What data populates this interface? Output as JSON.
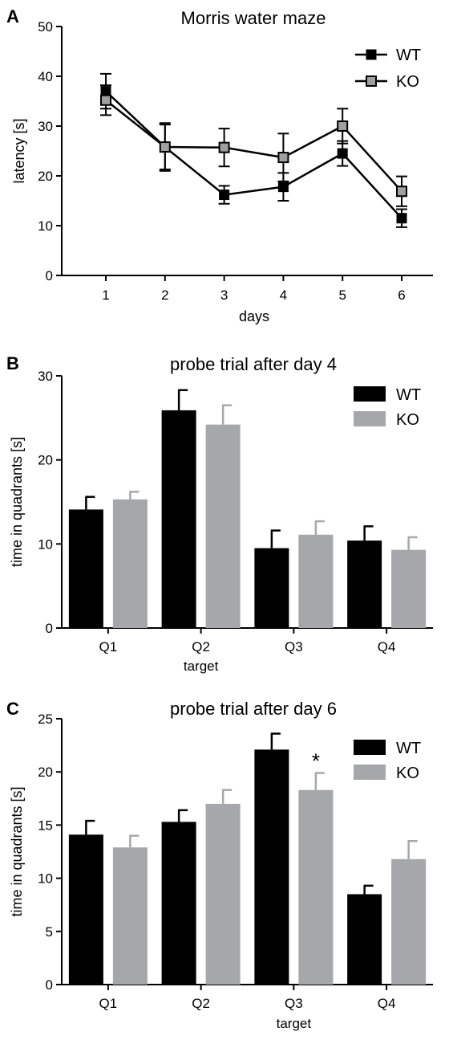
{
  "colors": {
    "wt": "#000000",
    "ko_bar": "#a6a7aa",
    "ko_marker": "#a0a0a0"
  },
  "chart_data": [
    {
      "panel_letter": "A",
      "type": "line",
      "title": "Morris water maze",
      "xlabel": "days",
      "ylabel": "latency [s]",
      "x": [
        1,
        2,
        3,
        4,
        5,
        6
      ],
      "xticks": [
        "1",
        "2",
        "3",
        "4",
        "5",
        "6"
      ],
      "ylim": [
        0,
        50
      ],
      "yticks": [
        0,
        10,
        20,
        30,
        40,
        50
      ],
      "legend_position": "top-right",
      "series": [
        {
          "name": "WT",
          "values": [
            37,
            25.8,
            16.2,
            17.8,
            24.5,
            11.5
          ],
          "errors": [
            3.5,
            4.5,
            1.8,
            2.8,
            2.5,
            1.8
          ],
          "marker": "square",
          "color": "#000000"
        },
        {
          "name": "KO",
          "values": [
            35.2,
            25.8,
            25.7,
            23.7,
            30,
            16.9
          ],
          "errors": [
            3,
            4.8,
            3.8,
            4.8,
            3.5,
            3
          ],
          "marker": "square-open",
          "color": "#a0a0a0"
        }
      ]
    },
    {
      "panel_letter": "B",
      "type": "bar",
      "title": "probe trial after day 4",
      "ylabel": "time in quadrants [s]",
      "categories": [
        "Q1",
        "Q2",
        "Q3",
        "Q4"
      ],
      "category_sublabels": [
        "",
        "target",
        "",
        ""
      ],
      "ylim": [
        0,
        30
      ],
      "yticks": [
        0,
        10,
        20,
        30
      ],
      "legend_position": "top-right",
      "series": [
        {
          "name": "WT",
          "values": [
            14.1,
            25.9,
            9.5,
            10.4
          ],
          "errors": [
            1.5,
            2.4,
            2.1,
            1.7
          ],
          "color": "#000000"
        },
        {
          "name": "KO",
          "values": [
            15.3,
            24.2,
            11.1,
            9.3
          ],
          "errors": [
            0.9,
            2.3,
            1.6,
            1.5
          ],
          "color": "#a6a7aa"
        }
      ],
      "annotations": []
    },
    {
      "panel_letter": "C",
      "type": "bar",
      "title": "probe trial after day 6",
      "ylabel": "time in quadrants [s]",
      "categories": [
        "Q1",
        "Q2",
        "Q3",
        "Q4"
      ],
      "category_sublabels": [
        "",
        "",
        "target",
        ""
      ],
      "ylim": [
        0,
        25
      ],
      "yticks": [
        0,
        5,
        10,
        15,
        20,
        25
      ],
      "legend_position": "top-right",
      "series": [
        {
          "name": "WT",
          "values": [
            14.1,
            15.3,
            22.1,
            8.5
          ],
          "errors": [
            1.3,
            1.1,
            1.5,
            0.8
          ],
          "color": "#000000"
        },
        {
          "name": "KO",
          "values": [
            12.9,
            17.0,
            18.3,
            11.8
          ],
          "errors": [
            1.1,
            1.3,
            1.6,
            1.7
          ],
          "color": "#a6a7aa"
        }
      ],
      "annotations": [
        {
          "text": "*",
          "category": "Q3",
          "series": "KO"
        }
      ]
    }
  ]
}
